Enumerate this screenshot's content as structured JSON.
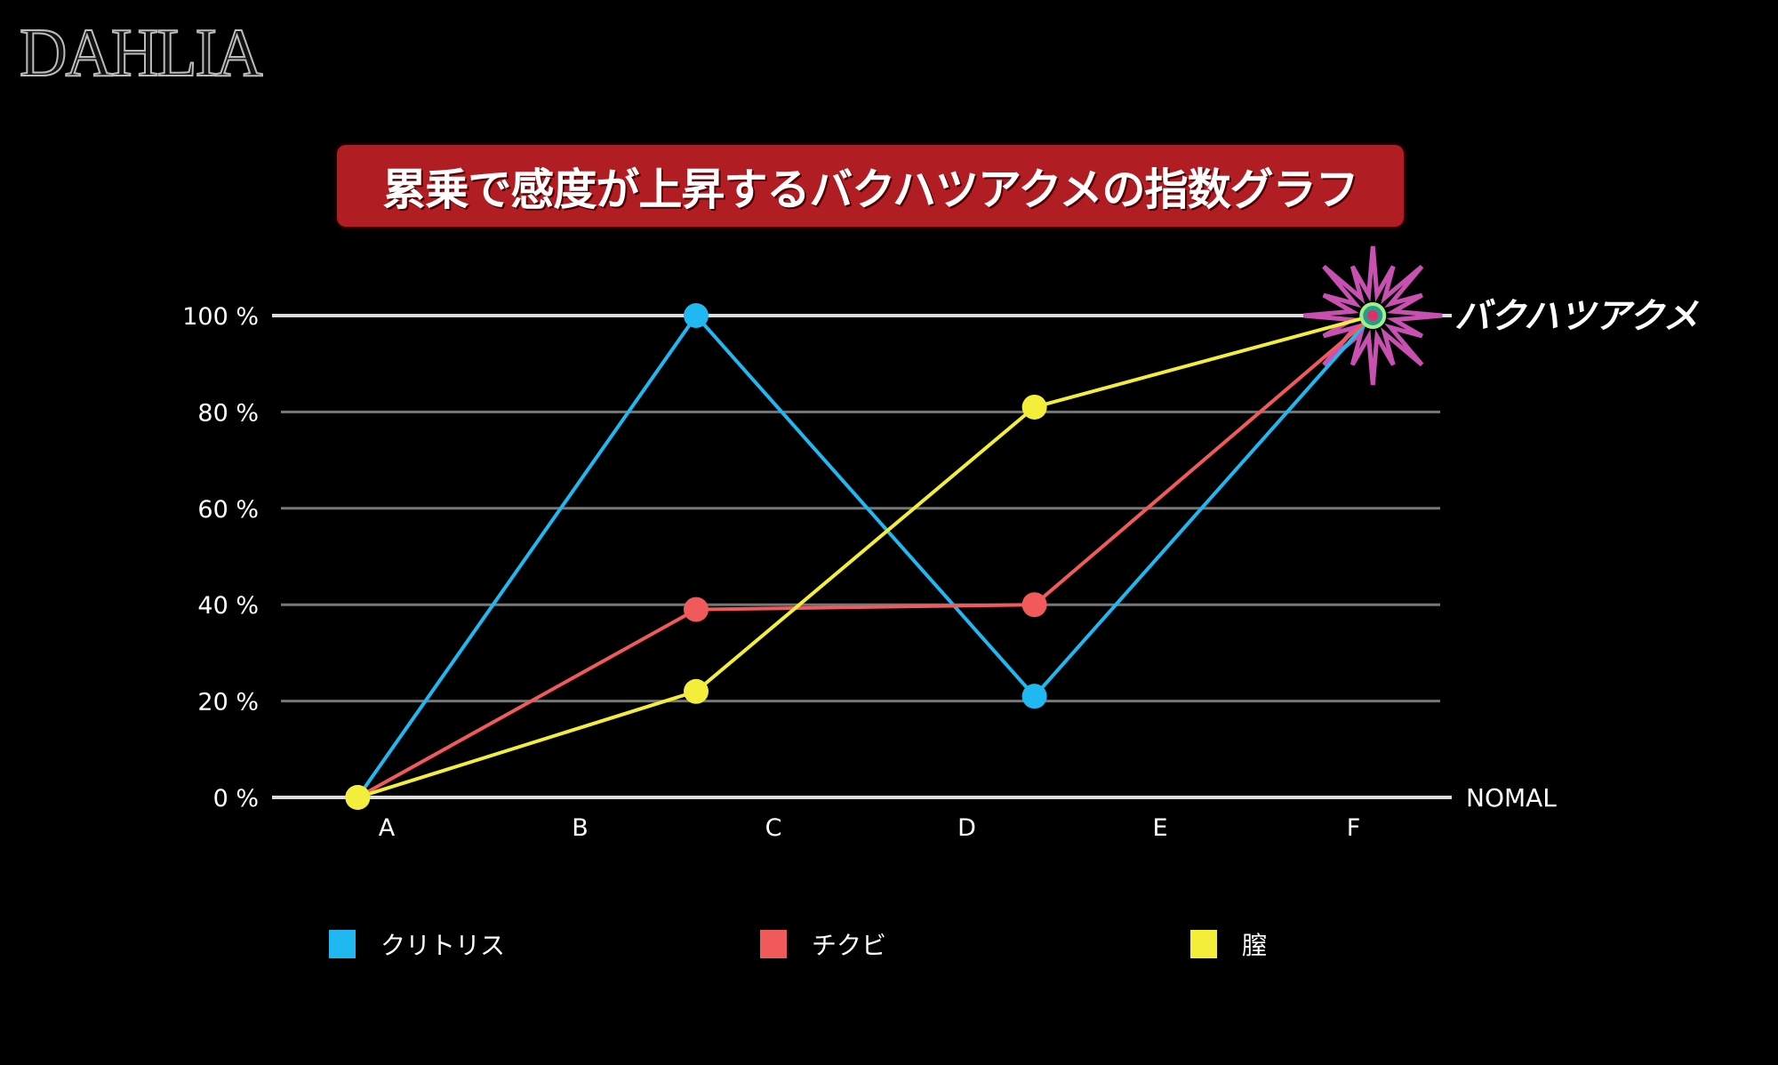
{
  "logo": "DAHLIA",
  "chart_data": {
    "type": "line",
    "title": "累乗で感度が上昇するバクハツアクメの指数グラフ",
    "categories": [
      "A",
      "B",
      "C",
      "D",
      "E",
      "F"
    ],
    "x": [
      -0.15,
      1.6,
      3.35,
      5.1
    ],
    "ylim": [
      0,
      100
    ],
    "yticks": [
      "0 %",
      "20 %",
      "40 %",
      "60 %",
      "80 %",
      "100 %"
    ],
    "ytick_values": [
      0,
      20,
      40,
      60,
      80,
      100
    ],
    "grid": true,
    "legend_position": "bottom",
    "annotations": {
      "top": "バクハツアクメ",
      "baseline": "NOMAL"
    },
    "series": [
      {
        "name": "クリトリス",
        "color": "#1fb8f0",
        "values": [
          0,
          100,
          21,
          100
        ]
      },
      {
        "name": "チクビ",
        "color": "#f05a5a",
        "values": [
          0,
          39,
          40,
          100
        ]
      },
      {
        "name": "膣",
        "color": "#f2ee3a",
        "values": [
          0,
          22,
          81,
          100
        ]
      }
    ],
    "burst_color": "#c850b0"
  }
}
